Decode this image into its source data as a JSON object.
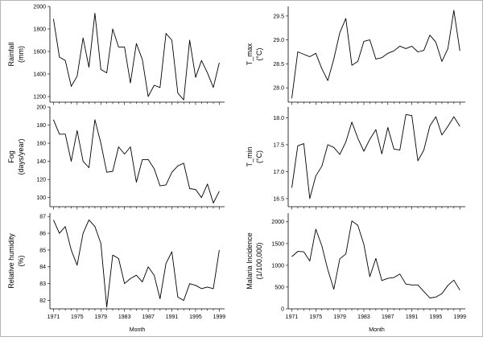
{
  "chart_data": [
    {
      "type": "line",
      "ylabel": "Rainfall",
      "yunit": "(mm)",
      "xlabel": "",
      "ylim": [
        1150,
        2000
      ],
      "yticks": [
        1200,
        1400,
        1600,
        1800,
        2000
      ],
      "xticks": [],
      "x": [
        1971,
        1972,
        1973,
        1974,
        1975,
        1976,
        1977,
        1978,
        1979,
        1980,
        1981,
        1982,
        1983,
        1984,
        1985,
        1986,
        1987,
        1988,
        1989,
        1990,
        1991,
        1992,
        1993,
        1994,
        1995,
        1996,
        1997,
        1998,
        1999
      ],
      "values": [
        1890,
        1550,
        1520,
        1290,
        1380,
        1720,
        1460,
        1940,
        1440,
        1410,
        1800,
        1640,
        1640,
        1320,
        1670,
        1530,
        1200,
        1300,
        1280,
        1760,
        1700,
        1230,
        1170,
        1700,
        1370,
        1520,
        1410,
        1280,
        1500
      ]
    },
    {
      "type": "line",
      "ylabel": "T_max",
      "yunit": "(°C)",
      "xlabel": "",
      "ylim": [
        27.7,
        29.7
      ],
      "yticks": [
        28.0,
        28.5,
        29.0,
        29.5
      ],
      "xticks": [],
      "x": [
        1971,
        1972,
        1973,
        1974,
        1975,
        1976,
        1977,
        1978,
        1979,
        1980,
        1981,
        1982,
        1983,
        1984,
        1985,
        1986,
        1987,
        1988,
        1989,
        1990,
        1991,
        1992,
        1993,
        1994,
        1995,
        1996,
        1997,
        1998,
        1999
      ],
      "values": [
        27.78,
        28.75,
        28.7,
        28.65,
        28.72,
        28.4,
        28.15,
        28.6,
        29.15,
        29.45,
        28.47,
        28.55,
        28.97,
        29.0,
        28.6,
        28.63,
        28.72,
        28.77,
        28.87,
        28.82,
        28.87,
        28.75,
        28.78,
        29.1,
        28.95,
        28.55,
        28.82,
        29.62,
        28.77
      ]
    },
    {
      "type": "line",
      "ylabel": "Fog",
      "yunit": "(days/year)",
      "xlabel": "",
      "ylim": [
        90,
        200
      ],
      "yticks": [
        100,
        120,
        140,
        160,
        180,
        200
      ],
      "xticks": [],
      "x": [
        1971,
        1972,
        1973,
        1974,
        1975,
        1976,
        1977,
        1978,
        1979,
        1980,
        1981,
        1982,
        1983,
        1984,
        1985,
        1986,
        1987,
        1988,
        1989,
        1990,
        1991,
        1992,
        1993,
        1994,
        1995,
        1996,
        1997,
        1998,
        1999
      ],
      "values": [
        186,
        170,
        170,
        140,
        174,
        140,
        133,
        186,
        160,
        128,
        129,
        156,
        148,
        156,
        117,
        142,
        142,
        132,
        113,
        114,
        128,
        135,
        138,
        110,
        109,
        100,
        115,
        94,
        107
      ]
    },
    {
      "type": "line",
      "ylabel": "T_min",
      "yunit": "(°C)",
      "xlabel": "",
      "ylim": [
        16.35,
        18.2
      ],
      "yticks": [
        16.5,
        17.0,
        17.5,
        18.0
      ],
      "xticks": [],
      "x": [
        1971,
        1972,
        1973,
        1974,
        1975,
        1976,
        1977,
        1978,
        1979,
        1980,
        1981,
        1982,
        1983,
        1984,
        1985,
        1986,
        1987,
        1988,
        1989,
        1990,
        1991,
        1992,
        1993,
        1994,
        1995,
        1996,
        1997,
        1998,
        1999
      ],
      "values": [
        16.7,
        17.48,
        17.52,
        16.5,
        16.92,
        17.1,
        17.5,
        17.45,
        17.32,
        17.55,
        17.92,
        17.62,
        17.38,
        17.6,
        17.78,
        17.33,
        17.82,
        17.42,
        17.4,
        18.06,
        18.04,
        17.2,
        17.4,
        17.85,
        18.02,
        17.68,
        17.84,
        18.02,
        17.84
      ]
    },
    {
      "type": "line",
      "ylabel": "Relative humidity",
      "yunit": "(%)",
      "xlabel": "Month",
      "ylim": [
        81.5,
        87.2
      ],
      "yticks": [
        82,
        83,
        84,
        85,
        86,
        87
      ],
      "xticks": [
        1971,
        1975,
        1979,
        1983,
        1987,
        1991,
        1995,
        1999
      ],
      "x": [
        1971,
        1972,
        1973,
        1974,
        1975,
        1976,
        1977,
        1978,
        1979,
        1980,
        1981,
        1982,
        1983,
        1984,
        1985,
        1986,
        1987,
        1988,
        1989,
        1990,
        1991,
        1992,
        1993,
        1994,
        1995,
        1996,
        1997,
        1998,
        1999
      ],
      "values": [
        86.8,
        86.0,
        86.4,
        85.0,
        84.1,
        86.0,
        86.8,
        86.4,
        85.4,
        81.6,
        84.7,
        84.5,
        83.0,
        83.3,
        83.5,
        83.1,
        84.0,
        83.5,
        82.1,
        84.2,
        84.9,
        82.2,
        82.0,
        83.0,
        82.9,
        82.7,
        82.8,
        82.7,
        85.0
      ]
    },
    {
      "type": "line",
      "ylabel": "Malaria Incidence",
      "yunit": "(1/100,000)",
      "xlabel": "Month",
      "ylim": [
        0,
        2200
      ],
      "yticks": [
        0,
        500,
        1000,
        1500,
        2000
      ],
      "xticks": [
        1971,
        1975,
        1979,
        1983,
        1987,
        1991,
        1995,
        1999
      ],
      "x": [
        1971,
        1972,
        1973,
        1974,
        1975,
        1976,
        1977,
        1978,
        1979,
        1980,
        1981,
        1982,
        1983,
        1984,
        1985,
        1986,
        1987,
        1988,
        1989,
        1990,
        1991,
        1992,
        1993,
        1994,
        1995,
        1996,
        1997,
        1998,
        1999
      ],
      "values": [
        1200,
        1320,
        1310,
        1100,
        1830,
        1450,
        900,
        450,
        1150,
        1260,
        2020,
        1920,
        1480,
        740,
        1160,
        650,
        700,
        720,
        800,
        570,
        550,
        550,
        400,
        250,
        270,
        350,
        540,
        660,
        430
      ]
    }
  ]
}
